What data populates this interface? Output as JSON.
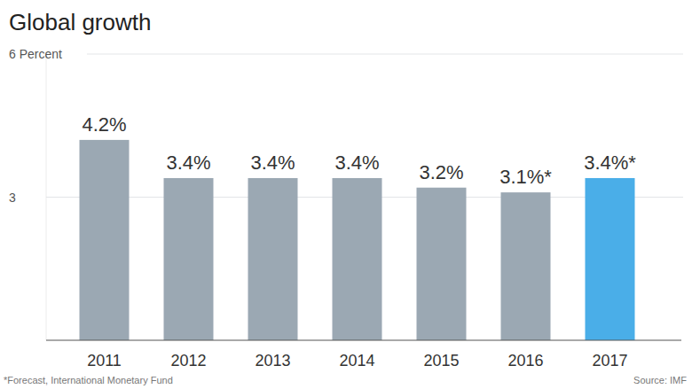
{
  "chart_data": {
    "type": "bar",
    "title": "Global growth",
    "categories": [
      "2011",
      "2012",
      "2013",
      "2014",
      "2015",
      "2016",
      "2017"
    ],
    "values": [
      4.2,
      3.4,
      3.4,
      3.4,
      3.2,
      3.1,
      3.4
    ],
    "value_labels": [
      "4.2%",
      "3.4%",
      "3.4%",
      "3.4%",
      "3.2%",
      "3.1%*",
      "3.4%*"
    ],
    "colors": [
      "#9ba8b3",
      "#9ba8b3",
      "#9ba8b3",
      "#9ba8b3",
      "#9ba8b3",
      "#9ba8b3",
      "#4aaee8"
    ],
    "ylim": [
      0,
      6
    ],
    "yticks": [
      3,
      {
        "value": 6,
        "label": "6 Percent"
      }
    ],
    "grid": true,
    "data_labels": true,
    "footnote": "*Forecast, International Monetary Fund",
    "source": "Source: IMF"
  }
}
